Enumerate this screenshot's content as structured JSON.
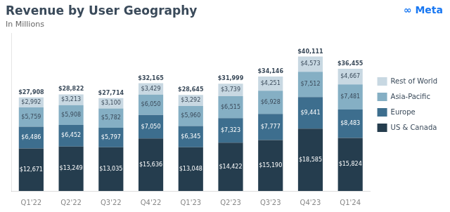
{
  "chart_data": {
    "type": "bar",
    "title": "Revenue by User Geography",
    "subtitle": "In Millions",
    "categories": [
      "Q1'22",
      "Q2'22",
      "Q3'22",
      "Q4'22",
      "Q1'23",
      "Q2'23",
      "Q3'23",
      "Q4'23",
      "Q1'24"
    ],
    "series": [
      {
        "name": "US & Canada",
        "color": "#253d4e",
        "values": [
          12671,
          13249,
          13035,
          15636,
          13048,
          14422,
          15190,
          18585,
          15824
        ],
        "value_labels": [
          "$12,671",
          "$13,249",
          "$13,035",
          "$15,636",
          "$13,048",
          "$14,422",
          "$15,190",
          "$18,585",
          "$15,824"
        ]
      },
      {
        "name": "Europe",
        "color": "#3d6e8e",
        "values": [
          6486,
          6452,
          5797,
          7050,
          6345,
          7323,
          7777,
          9441,
          8483
        ],
        "value_labels": [
          "$6,486",
          "$6,452",
          "$5,797",
          "$7,050",
          "$6,345",
          "$7,323",
          "$7,777",
          "$9,441",
          "$8,483"
        ]
      },
      {
        "name": "Asia-Pacific",
        "color": "#85afc4",
        "values": [
          5759,
          5908,
          5782,
          6050,
          5960,
          6515,
          6928,
          7512,
          7481
        ],
        "value_labels": [
          "$5,759",
          "$5,908",
          "$5,782",
          "$6,050",
          "$5,960",
          "$6,515",
          "$6,928",
          "$7,512",
          "$7,481"
        ]
      },
      {
        "name": "Rest of World",
        "color": "#c8d8e2",
        "values": [
          2992,
          3213,
          3100,
          3429,
          3292,
          3739,
          4251,
          4573,
          4667
        ],
        "value_labels": [
          "$2,992",
          "$3,213",
          "$3,100",
          "$3,429",
          "$3,292",
          "$3,739",
          "$4,251",
          "$4,573",
          "$4,667"
        ]
      }
    ],
    "totals": [
      27908,
      28822,
      27714,
      32165,
      28645,
      31999,
      34146,
      40111,
      36455
    ],
    "total_labels": [
      "$27,908",
      "$28,822",
      "$27,714",
      "$32,165",
      "$28,645",
      "$31,999",
      "$34,146",
      "$40,111",
      "$36,455"
    ],
    "annotations": [
      {
        "text": "∞ Meta",
        "color": "#1877F2"
      }
    ],
    "stacked": true,
    "data_labels": true,
    "ylim": [
      0,
      47000
    ],
    "tick_labels": "x",
    "grid": false,
    "legend": "right"
  }
}
